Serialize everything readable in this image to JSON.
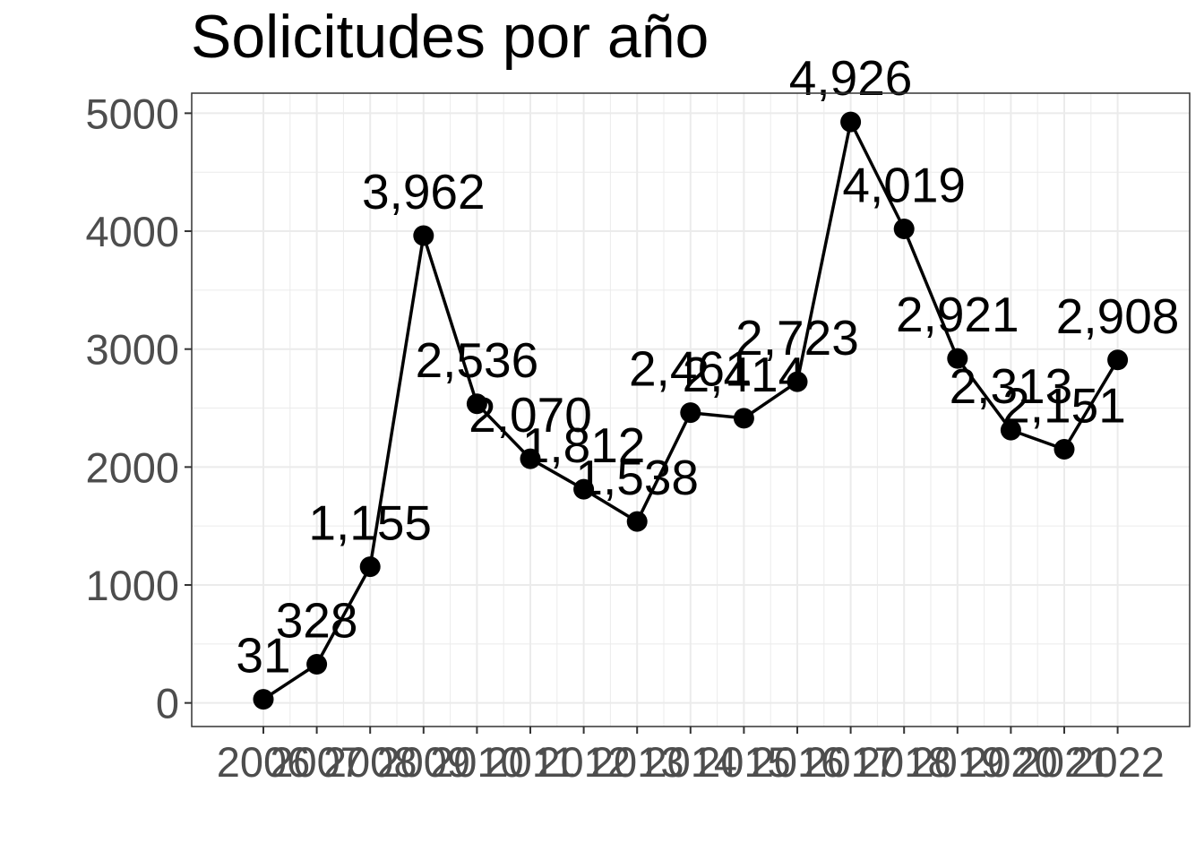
{
  "chart_data": {
    "type": "line",
    "title": "Solicitudes por año",
    "xlabel": "",
    "ylabel": "",
    "x": [
      "2006",
      "2007",
      "2008",
      "2009",
      "2010",
      "2011",
      "2012",
      "2013",
      "2014",
      "2015",
      "2016",
      "2017",
      "2018",
      "2019",
      "2020",
      "2021",
      "2022"
    ],
    "values": [
      31,
      328,
      1155,
      3962,
      2536,
      2070,
      1812,
      1538,
      2461,
      2414,
      2723,
      4926,
      4019,
      2921,
      2313,
      2151,
      2908
    ],
    "data_labels": [
      "31",
      "328",
      "1,155",
      "3,962",
      "2,536",
      "2,070",
      "1,812",
      "1,538",
      "2,461",
      "2,414",
      "2,723",
      "4,926",
      "4,019",
      "2,921",
      "2,313",
      "2,151",
      "2,908"
    ],
    "y_ticks": [
      0,
      1000,
      2000,
      3000,
      4000,
      5000
    ],
    "ylim": [
      -200,
      5170
    ],
    "grid": true,
    "colors": {
      "line": "#000000",
      "grid": "#ebebeb",
      "border": "#333333"
    }
  }
}
